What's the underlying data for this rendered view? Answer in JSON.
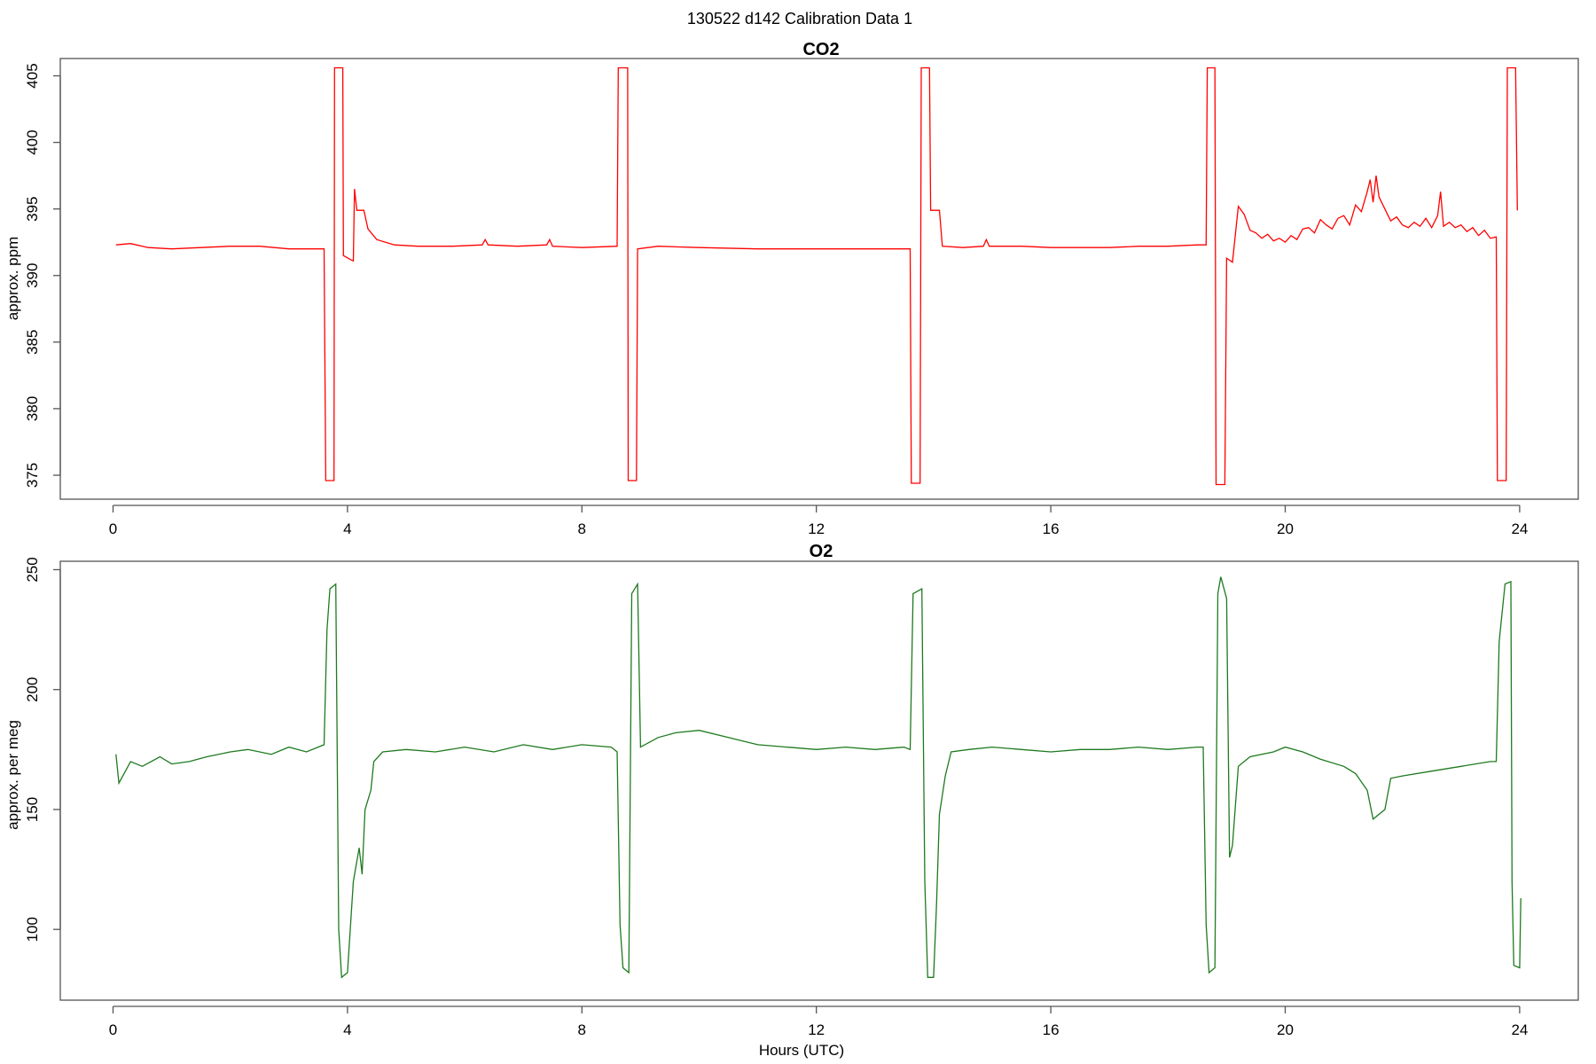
{
  "figure_title": "130522   d142   Calibration Data 1",
  "colors": {
    "co2": "#ff0000",
    "o2": "#1e7a1e",
    "axis": "#555555"
  },
  "chart_data": [
    {
      "type": "line",
      "title": "CO2",
      "xlabel": "",
      "ylabel": "approx. ppm",
      "xlim": [
        -0.9,
        25.0
      ],
      "ylim": [
        373.2,
        406.3
      ],
      "xticks": [
        0,
        4,
        8,
        12,
        16,
        20,
        24
      ],
      "yticks": [
        375,
        380,
        385,
        390,
        395,
        400,
        405
      ],
      "series": [
        {
          "color": "#ff0000",
          "points": [
            [
              0.05,
              392.3
            ],
            [
              0.3,
              392.4
            ],
            [
              0.6,
              392.1
            ],
            [
              1.0,
              392.0
            ],
            [
              1.5,
              392.1
            ],
            [
              2.0,
              392.2
            ],
            [
              2.5,
              392.2
            ],
            [
              3.0,
              392.0
            ],
            [
              3.6,
              392.0
            ],
            [
              3.63,
              374.6
            ],
            [
              3.77,
              374.6
            ],
            [
              3.78,
              405.6
            ],
            [
              3.92,
              405.6
            ],
            [
              3.93,
              391.5
            ],
            [
              4.05,
              391.2
            ],
            [
              4.1,
              391.1
            ],
            [
              4.12,
              396.5
            ],
            [
              4.16,
              394.9
            ],
            [
              4.28,
              394.9
            ],
            [
              4.35,
              393.5
            ],
            [
              4.5,
              392.7
            ],
            [
              4.8,
              392.3
            ],
            [
              5.2,
              392.2
            ],
            [
              5.8,
              392.2
            ],
            [
              6.3,
              392.3
            ],
            [
              6.35,
              392.7
            ],
            [
              6.4,
              392.3
            ],
            [
              6.9,
              392.2
            ],
            [
              7.4,
              392.3
            ],
            [
              7.45,
              392.7
            ],
            [
              7.5,
              392.2
            ],
            [
              8.0,
              392.1
            ],
            [
              8.6,
              392.2
            ],
            [
              8.62,
              405.6
            ],
            [
              8.78,
              405.6
            ],
            [
              8.79,
              374.6
            ],
            [
              8.93,
              374.6
            ],
            [
              8.95,
              392.0
            ],
            [
              9.3,
              392.2
            ],
            [
              10.0,
              392.1
            ],
            [
              11.0,
              392.0
            ],
            [
              12.0,
              392.0
            ],
            [
              13.0,
              392.0
            ],
            [
              13.6,
              392.0
            ],
            [
              13.62,
              374.4
            ],
            [
              13.77,
              374.4
            ],
            [
              13.79,
              405.6
            ],
            [
              13.93,
              405.6
            ],
            [
              13.95,
              394.9
            ],
            [
              14.1,
              394.9
            ],
            [
              14.15,
              392.2
            ],
            [
              14.5,
              392.1
            ],
            [
              14.85,
              392.2
            ],
            [
              14.9,
              392.7
            ],
            [
              14.95,
              392.2
            ],
            [
              15.5,
              392.2
            ],
            [
              16.0,
              392.1
            ],
            [
              16.5,
              392.1
            ],
            [
              17.0,
              392.1
            ],
            [
              17.5,
              392.2
            ],
            [
              18.0,
              392.2
            ],
            [
              18.5,
              392.3
            ],
            [
              18.65,
              392.3
            ],
            [
              18.67,
              405.6
            ],
            [
              18.8,
              405.6
            ],
            [
              18.82,
              374.3
            ],
            [
              18.97,
              374.3
            ],
            [
              19.0,
              391.3
            ],
            [
              19.1,
              391.0
            ],
            [
              19.2,
              395.2
            ],
            [
              19.3,
              394.6
            ],
            [
              19.4,
              393.4
            ],
            [
              19.5,
              393.2
            ],
            [
              19.6,
              392.8
            ],
            [
              19.7,
              393.1
            ],
            [
              19.8,
              392.6
            ],
            [
              19.9,
              392.8
            ],
            [
              20.0,
              392.5
            ],
            [
              20.1,
              393.0
            ],
            [
              20.2,
              392.7
            ],
            [
              20.3,
              393.5
            ],
            [
              20.4,
              393.6
            ],
            [
              20.5,
              393.2
            ],
            [
              20.6,
              394.2
            ],
            [
              20.7,
              393.8
            ],
            [
              20.8,
              393.5
            ],
            [
              20.9,
              394.3
            ],
            [
              21.0,
              394.5
            ],
            [
              21.1,
              393.8
            ],
            [
              21.2,
              395.3
            ],
            [
              21.3,
              394.8
            ],
            [
              21.4,
              396.3
            ],
            [
              21.45,
              397.2
            ],
            [
              21.5,
              395.5
            ],
            [
              21.55,
              397.5
            ],
            [
              21.6,
              395.9
            ],
            [
              21.7,
              395.0
            ],
            [
              21.8,
              394.1
            ],
            [
              21.9,
              394.4
            ],
            [
              22.0,
              393.8
            ],
            [
              22.1,
              393.6
            ],
            [
              22.2,
              394.0
            ],
            [
              22.3,
              393.7
            ],
            [
              22.4,
              394.3
            ],
            [
              22.5,
              393.6
            ],
            [
              22.6,
              394.5
            ],
            [
              22.65,
              396.3
            ],
            [
              22.7,
              393.7
            ],
            [
              22.8,
              394.0
            ],
            [
              22.9,
              393.6
            ],
            [
              23.0,
              393.8
            ],
            [
              23.1,
              393.3
            ],
            [
              23.2,
              393.6
            ],
            [
              23.3,
              393.0
            ],
            [
              23.4,
              393.4
            ],
            [
              23.5,
              392.8
            ],
            [
              23.6,
              392.9
            ],
            [
              23.62,
              374.6
            ],
            [
              23.77,
              374.6
            ],
            [
              23.79,
              405.6
            ],
            [
              23.93,
              405.6
            ],
            [
              23.96,
              394.9
            ]
          ]
        }
      ]
    },
    {
      "type": "line",
      "title": "O2",
      "xlabel": "Hours (UTC)",
      "ylabel": "approx. per meg",
      "xlim": [
        -0.9,
        25.0
      ],
      "ylim": [
        70.5,
        253.5
      ],
      "xticks": [
        0,
        4,
        8,
        12,
        16,
        20,
        24
      ],
      "yticks": [
        100,
        150,
        200,
        250
      ],
      "series": [
        {
          "color": "#1e7a1e",
          "points": [
            [
              0.05,
              173
            ],
            [
              0.1,
              161
            ],
            [
              0.3,
              170
            ],
            [
              0.5,
              168
            ],
            [
              0.8,
              172
            ],
            [
              1.0,
              169
            ],
            [
              1.3,
              170
            ],
            [
              1.6,
              172
            ],
            [
              2.0,
              174
            ],
            [
              2.3,
              175
            ],
            [
              2.7,
              173
            ],
            [
              3.0,
              176
            ],
            [
              3.3,
              174
            ],
            [
              3.6,
              177
            ],
            [
              3.65,
              225
            ],
            [
              3.7,
              242
            ],
            [
              3.8,
              244
            ],
            [
              3.85,
              100
            ],
            [
              3.9,
              80
            ],
            [
              4.0,
              82
            ],
            [
              4.1,
              120
            ],
            [
              4.2,
              134
            ],
            [
              4.25,
              123
            ],
            [
              4.3,
              150
            ],
            [
              4.4,
              158
            ],
            [
              4.45,
              170
            ],
            [
              4.6,
              174
            ],
            [
              5.0,
              175
            ],
            [
              5.5,
              174
            ],
            [
              6.0,
              176
            ],
            [
              6.5,
              174
            ],
            [
              7.0,
              177
            ],
            [
              7.5,
              175
            ],
            [
              8.0,
              177
            ],
            [
              8.5,
              176
            ],
            [
              8.6,
              174
            ],
            [
              8.65,
              102
            ],
            [
              8.7,
              84
            ],
            [
              8.8,
              82
            ],
            [
              8.85,
              240
            ],
            [
              8.95,
              244
            ],
            [
              9.0,
              176
            ],
            [
              9.3,
              180
            ],
            [
              9.6,
              182
            ],
            [
              10.0,
              183
            ],
            [
              10.5,
              180
            ],
            [
              11.0,
              177
            ],
            [
              11.5,
              176
            ],
            [
              12.0,
              175
            ],
            [
              12.5,
              176
            ],
            [
              13.0,
              175
            ],
            [
              13.5,
              176
            ],
            [
              13.6,
              175
            ],
            [
              13.65,
              240
            ],
            [
              13.8,
              242
            ],
            [
              13.85,
              120
            ],
            [
              13.9,
              80
            ],
            [
              14.0,
              80
            ],
            [
              14.05,
              110
            ],
            [
              14.1,
              148
            ],
            [
              14.2,
              164
            ],
            [
              14.3,
              174
            ],
            [
              14.6,
              175
            ],
            [
              15.0,
              176
            ],
            [
              15.5,
              175
            ],
            [
              16.0,
              174
            ],
            [
              16.5,
              175
            ],
            [
              17.0,
              175
            ],
            [
              17.5,
              176
            ],
            [
              18.0,
              175
            ],
            [
              18.5,
              176
            ],
            [
              18.6,
              176
            ],
            [
              18.65,
              102
            ],
            [
              18.7,
              82
            ],
            [
              18.8,
              84
            ],
            [
              18.85,
              240
            ],
            [
              18.9,
              247
            ],
            [
              19.0,
              238
            ],
            [
              19.05,
              130
            ],
            [
              19.1,
              135
            ],
            [
              19.2,
              168
            ],
            [
              19.4,
              172
            ],
            [
              19.8,
              174
            ],
            [
              20.0,
              176
            ],
            [
              20.3,
              174
            ],
            [
              20.6,
              171
            ],
            [
              21.0,
              168
            ],
            [
              21.2,
              165
            ],
            [
              21.4,
              158
            ],
            [
              21.5,
              146
            ],
            [
              21.7,
              150
            ],
            [
              21.8,
              163
            ],
            [
              22.0,
              164
            ],
            [
              22.5,
              166
            ],
            [
              23.0,
              168
            ],
            [
              23.5,
              170
            ],
            [
              23.6,
              170
            ],
            [
              23.65,
              220
            ],
            [
              23.75,
              244
            ],
            [
              23.85,
              245
            ],
            [
              23.87,
              120
            ],
            [
              23.9,
              85
            ],
            [
              24.0,
              84
            ],
            [
              24.02,
              113
            ]
          ]
        }
      ]
    }
  ]
}
